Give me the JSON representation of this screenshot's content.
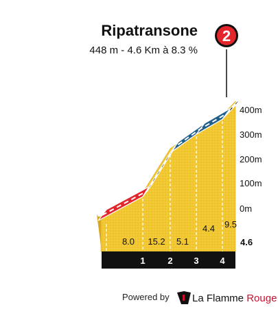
{
  "header": {
    "title": "Ripatransone",
    "subtitle": "448 m - 4.6 Km à 8.3 %"
  },
  "badge": {
    "number": "2",
    "color": "#e3262b"
  },
  "footer": {
    "powered_by": "Powered by",
    "brand_part1": "La Flamme",
    "brand_part2": "Rouge",
    "brand_color": "#c8102e"
  },
  "chart_data": {
    "type": "area",
    "title": "Ripatransone",
    "xlabel": "",
    "ylabel": "",
    "x_ticks": [
      "1",
      "2",
      "3",
      "4"
    ],
    "x_end_label": "4.6",
    "y_ticks": [
      "0m",
      "100m",
      "200m",
      "300m",
      "400m"
    ],
    "ylim_m": [
      0,
      400
    ],
    "segments": [
      {
        "from_km": 0,
        "to_km": 1,
        "gradient": "8.0",
        "color": "#e3262b"
      },
      {
        "from_km": 1,
        "to_km": 2,
        "gradient": "15.2",
        "color": "#111111"
      },
      {
        "from_km": 2,
        "to_km": 3,
        "gradient": "5.1",
        "color": "#1f5f8b"
      },
      {
        "from_km": 3,
        "to_km": 4,
        "gradient": "4.4",
        "color": "#1f5f8b"
      },
      {
        "from_km": 4,
        "to_km": 4.6,
        "gradient": "9.5",
        "color": "#111111"
      }
    ],
    "fill_color": "#f2c832",
    "fill_dark_color": "#d9a820",
    "base_color": "#111111"
  }
}
